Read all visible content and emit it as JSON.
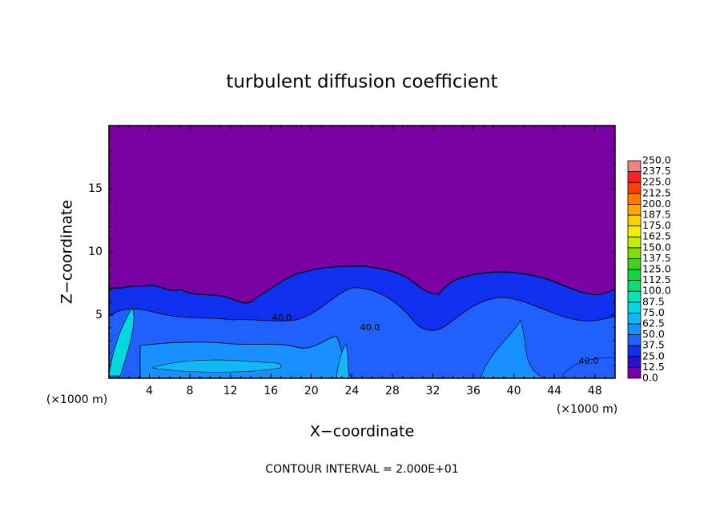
{
  "chart_data": {
    "type": "contour",
    "title": "turbulent diffusion coefficient",
    "x_label": "X−coordinate",
    "y_label": "Z−coordinate",
    "x_unit_label": "(×1000 m)",
    "annotation": "CONTOUR INTERVAL = 2.000E+01",
    "contour_labels": [
      "40.0",
      "40.0",
      "40.0"
    ],
    "xlim": [
      0,
      50
    ],
    "xticks": [
      4,
      8,
      12,
      16,
      20,
      24,
      28,
      32,
      36,
      40,
      44,
      48
    ],
    "ylim": [
      0,
      20
    ],
    "yticks": [
      5,
      10,
      15
    ],
    "colorbar": {
      "levels": [
        {
          "value": 0,
          "label": "0.0"
        },
        {
          "value": 12.5,
          "label": "12.5"
        },
        {
          "value": 25,
          "label": "25.0"
        },
        {
          "value": 37.5,
          "label": "37.5"
        },
        {
          "value": 50,
          "label": "50.0"
        },
        {
          "value": 62.5,
          "label": "62.5"
        },
        {
          "value": 75,
          "label": "75.0"
        },
        {
          "value": 87.5,
          "label": "87.5"
        },
        {
          "value": 100,
          "label": "100.0"
        },
        {
          "value": 112.5,
          "label": "112.5"
        },
        {
          "value": 125,
          "label": "125.0"
        },
        {
          "value": 137.5,
          "label": "137.5"
        },
        {
          "value": 150,
          "label": "150.0"
        },
        {
          "value": 162.5,
          "label": "162.5"
        },
        {
          "value": 175,
          "label": "175.0"
        },
        {
          "value": 187.5,
          "label": "187.5"
        },
        {
          "value": 200,
          "label": "200.0"
        },
        {
          "value": 212.5,
          "label": "212.5"
        },
        {
          "value": 225,
          "label": "225.0"
        },
        {
          "value": 237.5,
          "label": "237.5"
        },
        {
          "value": 250,
          "label": "250.0"
        }
      ],
      "colors": [
        "#7a00a4",
        "#2a10c8",
        "#1030f0",
        "#2060ff",
        "#1890ff",
        "#10b8f8",
        "#00d8e0",
        "#00e8b0",
        "#00e070",
        "#10d840",
        "#40d020",
        "#80e000",
        "#c0f000",
        "#f0f000",
        "#ffd000",
        "#ffa800",
        "#ff7800",
        "#ff4000",
        "#ff2020",
        "#f08080"
      ]
    }
  }
}
